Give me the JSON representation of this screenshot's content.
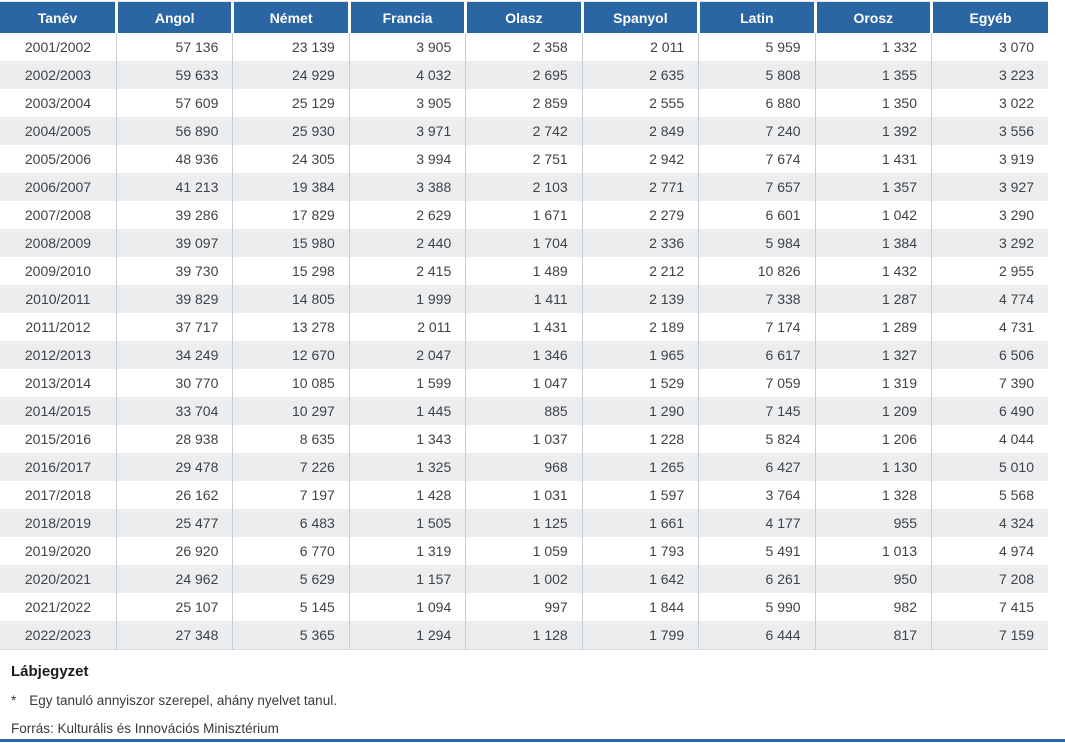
{
  "colors": {
    "header_bg": "#2a66a3",
    "stripe": "#ebedef",
    "accent_line": "#2a66a3"
  },
  "table": {
    "columns": [
      "Tanév",
      "Angol",
      "Német",
      "Francia",
      "Olasz",
      "Spanyol",
      "Latin",
      "Orosz",
      "Egyéb"
    ],
    "rows": [
      [
        "2001/2002",
        "57 136",
        "23 139",
        "3 905",
        "2 358",
        "2 011",
        "5 959",
        "1 332",
        "3 070"
      ],
      [
        "2002/2003",
        "59 633",
        "24 929",
        "4 032",
        "2 695",
        "2 635",
        "5 808",
        "1 355",
        "3 223"
      ],
      [
        "2003/2004",
        "57 609",
        "25 129",
        "3 905",
        "2 859",
        "2 555",
        "6 880",
        "1 350",
        "3 022"
      ],
      [
        "2004/2005",
        "56 890",
        "25 930",
        "3 971",
        "2 742",
        "2 849",
        "7 240",
        "1 392",
        "3 556"
      ],
      [
        "2005/2006",
        "48 936",
        "24 305",
        "3 994",
        "2 751",
        "2 942",
        "7 674",
        "1 431",
        "3 919"
      ],
      [
        "2006/2007",
        "41 213",
        "19 384",
        "3 388",
        "2 103",
        "2 771",
        "7 657",
        "1 357",
        "3 927"
      ],
      [
        "2007/2008",
        "39 286",
        "17 829",
        "2 629",
        "1 671",
        "2 279",
        "6 601",
        "1 042",
        "3 290"
      ],
      [
        "2008/2009",
        "39 097",
        "15 980",
        "2 440",
        "1 704",
        "2 336",
        "5 984",
        "1 384",
        "3 292"
      ],
      [
        "2009/2010",
        "39 730",
        "15 298",
        "2 415",
        "1 489",
        "2 212",
        "10 826",
        "1 432",
        "2 955"
      ],
      [
        "2010/2011",
        "39 829",
        "14 805",
        "1 999",
        "1 411",
        "2 139",
        "7 338",
        "1 287",
        "4 774"
      ],
      [
        "2011/2012",
        "37 717",
        "13 278",
        "2 011",
        "1 431",
        "2 189",
        "7 174",
        "1 289",
        "4 731"
      ],
      [
        "2012/2013",
        "34 249",
        "12 670",
        "2 047",
        "1 346",
        "1 965",
        "6 617",
        "1 327",
        "6 506"
      ],
      [
        "2013/2014",
        "30 770",
        "10 085",
        "1 599",
        "1 047",
        "1 529",
        "7 059",
        "1 319",
        "7 390"
      ],
      [
        "2014/2015",
        "33 704",
        "10 297",
        "1 445",
        "885",
        "1 290",
        "7 145",
        "1 209",
        "6 490"
      ],
      [
        "2015/2016",
        "28 938",
        "8 635",
        "1 343",
        "1 037",
        "1 228",
        "5 824",
        "1 206",
        "4 044"
      ],
      [
        "2016/2017",
        "29 478",
        "7 226",
        "1 325",
        "968",
        "1 265",
        "6 427",
        "1 130",
        "5 010"
      ],
      [
        "2017/2018",
        "26 162",
        "7 197",
        "1 428",
        "1 031",
        "1 597",
        "3 764",
        "1 328",
        "5 568"
      ],
      [
        "2018/2019",
        "25 477",
        "6 483",
        "1 505",
        "1 125",
        "1 661",
        "4 177",
        "955",
        "4 324"
      ],
      [
        "2019/2020",
        "26 920",
        "6 770",
        "1 319",
        "1 059",
        "1 793",
        "5 491",
        "1 013",
        "4 974"
      ],
      [
        "2020/2021",
        "24 962",
        "5 629",
        "1 157",
        "1 002",
        "1 642",
        "6 261",
        "950",
        "7 208"
      ],
      [
        "2021/2022",
        "25 107",
        "5 145",
        "1 094",
        "997",
        "1 844",
        "5 990",
        "982",
        "7 415"
      ],
      [
        "2022/2023",
        "27 348",
        "5 365",
        "1 294",
        "1 128",
        "1 799",
        "6 444",
        "817",
        "7 159"
      ]
    ]
  },
  "chart_data": {
    "type": "table",
    "title": "",
    "categories": [
      "2001/2002",
      "2002/2003",
      "2003/2004",
      "2004/2005",
      "2005/2006",
      "2006/2007",
      "2007/2008",
      "2008/2009",
      "2009/2010",
      "2010/2011",
      "2011/2012",
      "2012/2013",
      "2013/2014",
      "2014/2015",
      "2015/2016",
      "2016/2017",
      "2017/2018",
      "2018/2019",
      "2019/2020",
      "2020/2021",
      "2021/2022",
      "2022/2023"
    ],
    "x_header": "Tanév",
    "series": [
      {
        "name": "Angol",
        "values": [
          57136,
          59633,
          57609,
          56890,
          48936,
          41213,
          39286,
          39097,
          39730,
          39829,
          37717,
          34249,
          30770,
          33704,
          28938,
          29478,
          26162,
          25477,
          26920,
          24962,
          25107,
          27348
        ]
      },
      {
        "name": "Német",
        "values": [
          23139,
          24929,
          25129,
          25930,
          24305,
          19384,
          17829,
          15980,
          15298,
          14805,
          13278,
          12670,
          10085,
          10297,
          8635,
          7226,
          7197,
          6483,
          6770,
          5629,
          5145,
          5365
        ]
      },
      {
        "name": "Francia",
        "values": [
          3905,
          4032,
          3905,
          3971,
          3994,
          3388,
          2629,
          2440,
          2415,
          1999,
          2011,
          2047,
          1599,
          1445,
          1343,
          1325,
          1428,
          1505,
          1319,
          1157,
          1094,
          1294
        ]
      },
      {
        "name": "Olasz",
        "values": [
          2358,
          2695,
          2859,
          2742,
          2751,
          2103,
          1671,
          1704,
          1489,
          1411,
          1431,
          1346,
          1047,
          885,
          1037,
          968,
          1031,
          1125,
          1059,
          1002,
          997,
          1128
        ]
      },
      {
        "name": "Spanyol",
        "values": [
          2011,
          2635,
          2555,
          2849,
          2942,
          2771,
          2279,
          2336,
          2212,
          2139,
          2189,
          1965,
          1529,
          1290,
          1228,
          1265,
          1597,
          1661,
          1793,
          1642,
          1844,
          1799
        ]
      },
      {
        "name": "Latin",
        "values": [
          5959,
          5808,
          6880,
          7240,
          7674,
          7657,
          6601,
          5984,
          10826,
          7338,
          7174,
          6617,
          7059,
          7145,
          5824,
          6427,
          3764,
          4177,
          5491,
          6261,
          5990,
          6444
        ]
      },
      {
        "name": "Orosz",
        "values": [
          1332,
          1355,
          1350,
          1392,
          1431,
          1357,
          1042,
          1384,
          1432,
          1287,
          1289,
          1327,
          1319,
          1209,
          1206,
          1130,
          1328,
          955,
          1013,
          950,
          982,
          817
        ]
      },
      {
        "name": "Egyéb",
        "values": [
          3070,
          3223,
          3022,
          3556,
          3919,
          3927,
          3290,
          3292,
          2955,
          4774,
          4731,
          6506,
          7390,
          6490,
          4044,
          5010,
          5568,
          4324,
          4974,
          7208,
          7415,
          7159
        ]
      }
    ]
  },
  "footer": {
    "heading": "Lábjegyzet",
    "note_marker": "*",
    "note": "Egy tanuló annyiszor szerepel, ahány nyelvet tanul.",
    "source": "Forrás: Kulturális és Innovációs Minisztérium"
  }
}
